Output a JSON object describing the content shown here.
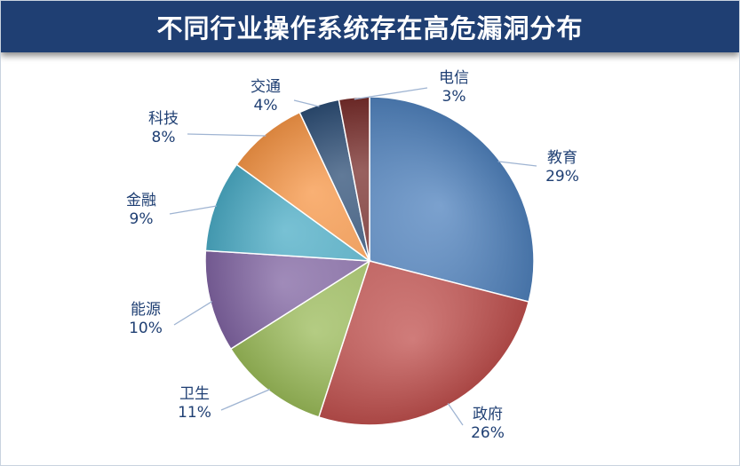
{
  "title": "不同行业操作系统存在高危漏洞分布",
  "chart_data": {
    "type": "pie",
    "title": "不同行业操作系统存在高危漏洞分布",
    "start_angle_deg": 0,
    "direction": "clockwise",
    "slices": [
      {
        "name": "教育",
        "value": 29,
        "label": "29%",
        "color": "#4f81bd"
      },
      {
        "name": "政府",
        "value": 26,
        "label": "26%",
        "color": "#c0504d"
      },
      {
        "name": "卫生",
        "value": 11,
        "label": "11%",
        "color": "#9bbb59"
      },
      {
        "name": "能源",
        "value": 10,
        "label": "10%",
        "color": "#8064a2"
      },
      {
        "name": "金融",
        "value": 9,
        "label": "9%",
        "color": "#4bacc6"
      },
      {
        "name": "科技",
        "value": 8,
        "label": "8%",
        "color": "#f79646"
      },
      {
        "name": "交通",
        "value": 4,
        "label": "4%",
        "color": "#2c4d75"
      },
      {
        "name": "电信",
        "value": 3,
        "label": "3%",
        "color": "#772c2a"
      }
    ]
  }
}
